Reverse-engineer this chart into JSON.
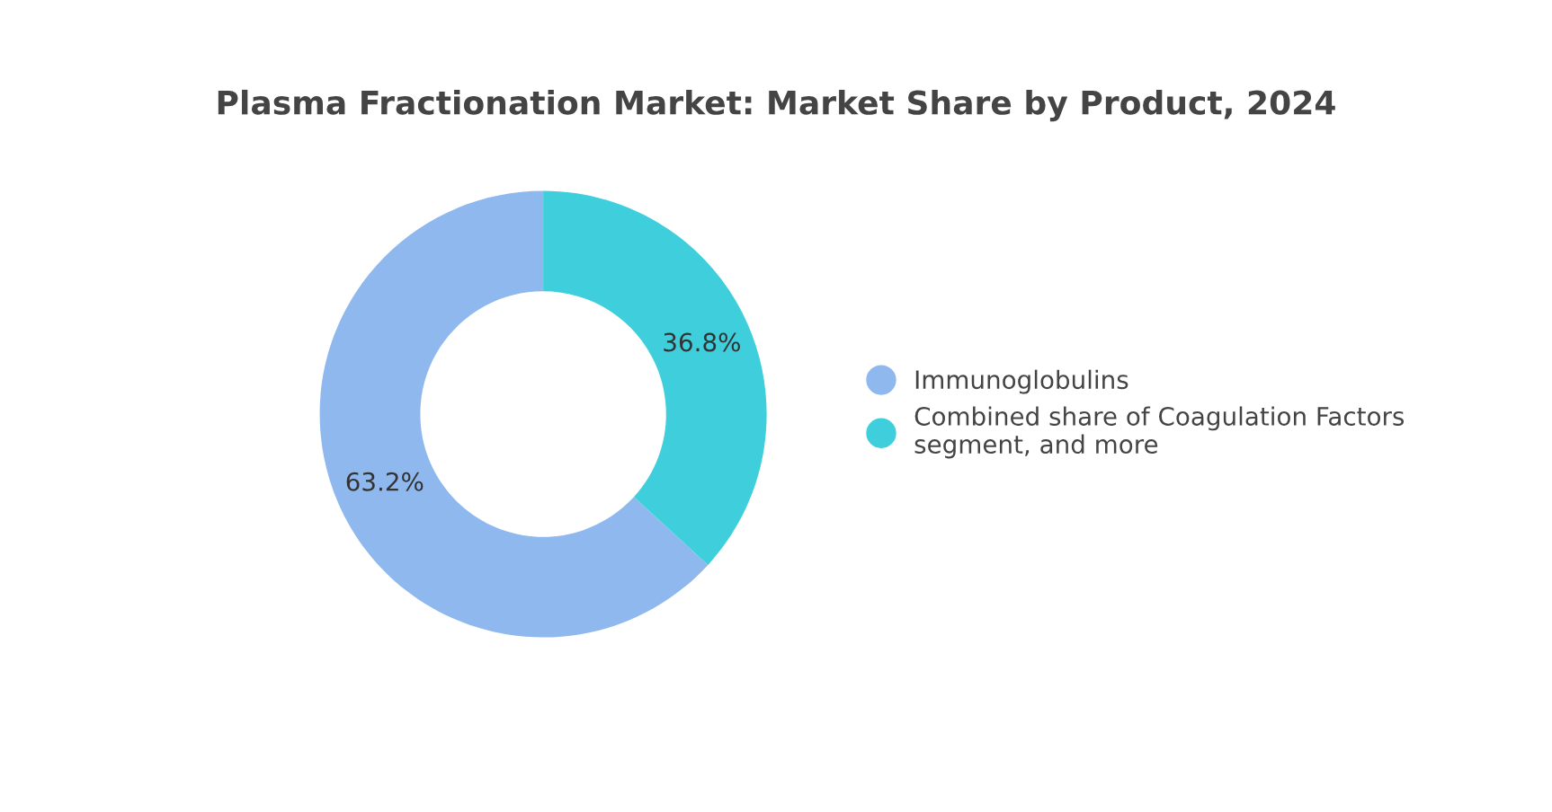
{
  "chart_data": {
    "type": "donut",
    "title": "Plasma Fractionation Market: Market Share by Product, 2024",
    "categories": [
      "Immunoglobulins",
      "Combined share of Coagulation Factors\nsegment, and more"
    ],
    "values": [
      63.2,
      36.8
    ],
    "colors": [
      "#8fb9ee",
      "#3fcfdc"
    ],
    "value_labels": [
      "63.2%",
      "36.8%"
    ],
    "legend": "right"
  }
}
